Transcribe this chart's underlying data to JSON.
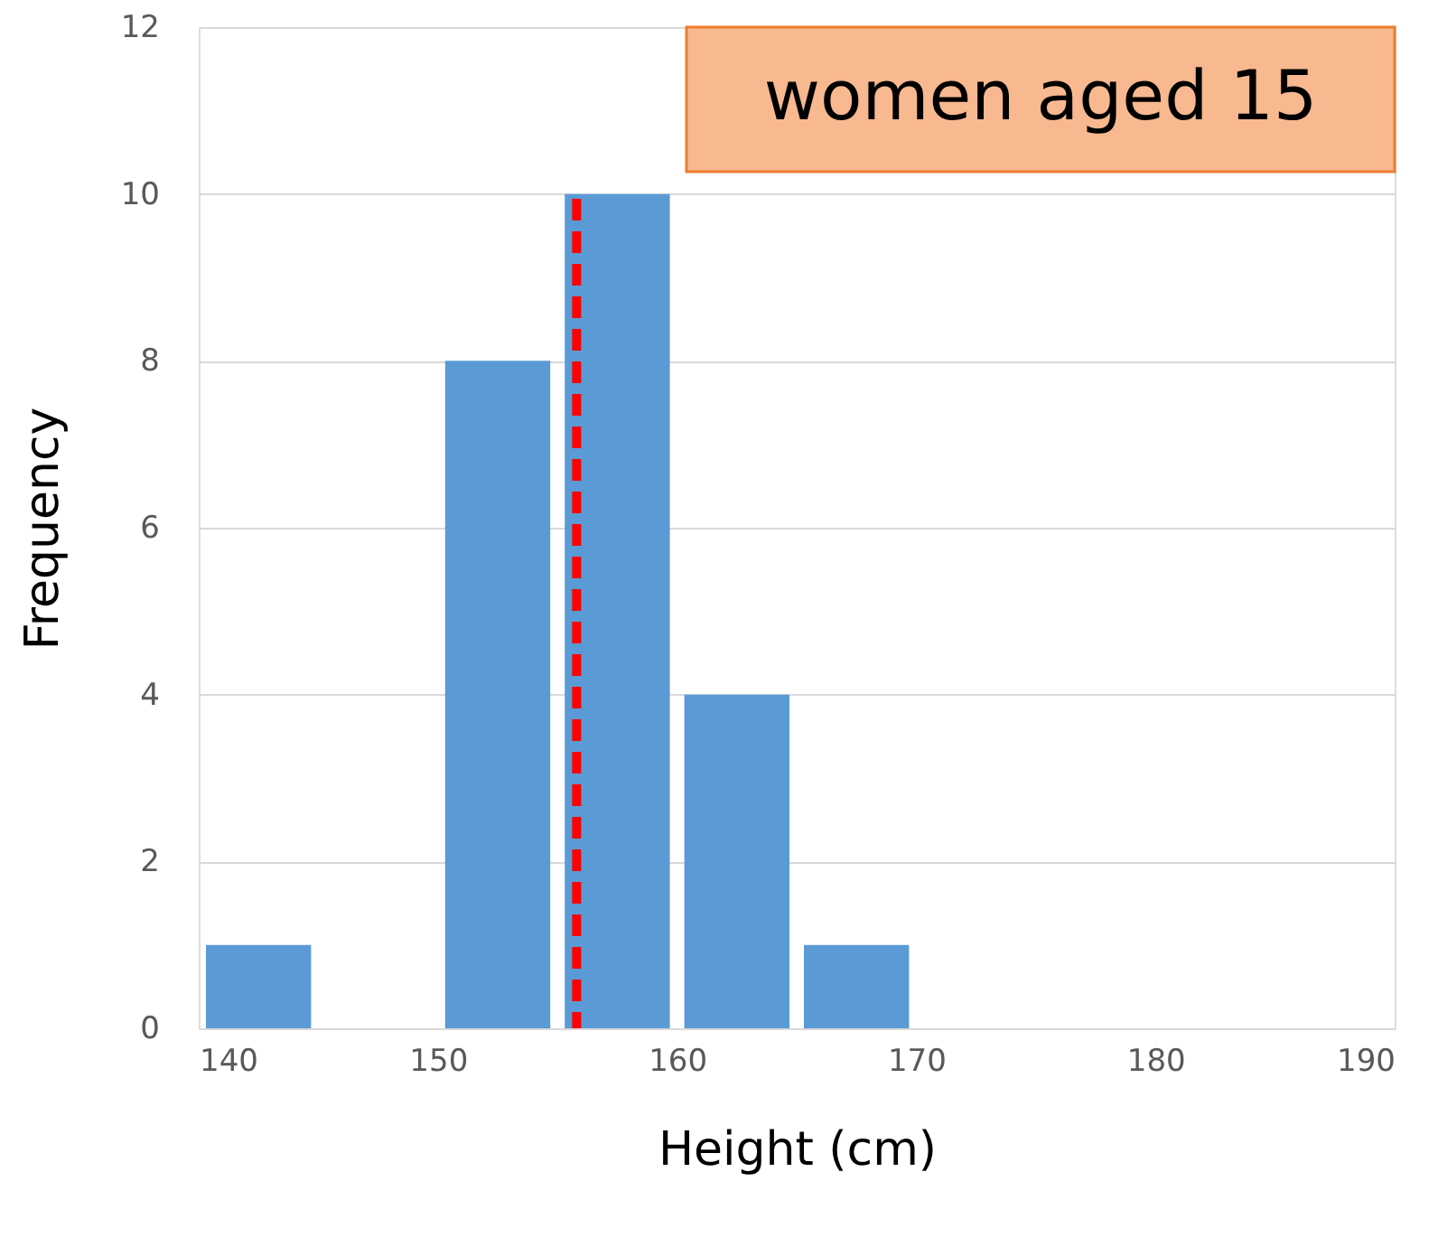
{
  "chart_data": {
    "type": "histogram",
    "xlabel": "Height (cm)",
    "ylabel": "Frequency",
    "bins": [
      140,
      145,
      150,
      155,
      160,
      165,
      170,
      175,
      180,
      185,
      190
    ],
    "values": [
      1,
      0,
      8,
      10,
      4,
      1,
      0,
      0,
      0,
      0
    ],
    "color": "#5b9bd5",
    "xlim": [
      140,
      190
    ],
    "xticks": [
      140,
      150,
      160,
      170,
      180,
      190
    ],
    "ylim": [
      0,
      12
    ],
    "yticks": [
      0,
      2,
      4,
      6,
      8,
      10,
      12
    ],
    "grid": "y",
    "ref_lines": [
      {
        "axis": "x",
        "value": 155.8,
        "label": null,
        "color": "#ff0000",
        "line_style": "dashed"
      }
    ],
    "annotations": [
      "women aged 15"
    ]
  }
}
